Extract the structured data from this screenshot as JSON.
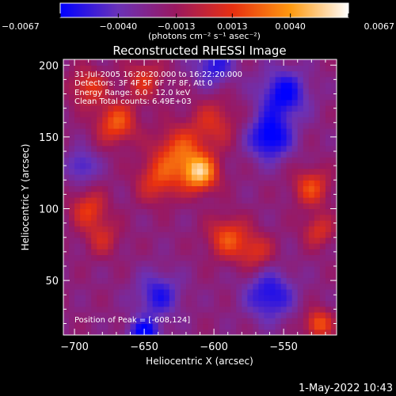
{
  "window": {
    "timestamp": "1-May-2022 10:43"
  },
  "colorbar": {
    "tick_labels": [
      "−0.0067",
      "−0.0040",
      "−0.0013",
      "0.0013",
      "0.0040",
      "0.0067"
    ],
    "tick_values": [
      -0.0067,
      -0.004,
      -0.0013,
      0.0013,
      0.004,
      0.0067
    ],
    "units": "(photons cm⁻² s⁻¹ asec⁻²)",
    "range": [
      -0.0067,
      0.0067
    ]
  },
  "chart_data": {
    "type": "heatmap",
    "title": "Reconstructed RHESSI Image",
    "xlabel": "Heliocentric X (arcsec)",
    "ylabel": "Heliocentric Y (arcsec)",
    "xlim": [
      -708,
      -512
    ],
    "ylim": [
      12,
      204
    ],
    "x_ticks": [
      -700,
      -650,
      -600,
      -550
    ],
    "y_ticks": [
      50,
      100,
      150,
      200
    ],
    "x_tick_labels": [
      "−700",
      "−650",
      "−600",
      "−550"
    ],
    "y_tick_labels": [
      "50",
      "100",
      "150",
      "200"
    ],
    "colormap": [
      "#0000ff",
      "#6a32b8",
      "#9a1860",
      "#e83010",
      "#ff9a10",
      "#ffffff"
    ],
    "peak": {
      "x": -608,
      "y": 124
    },
    "annotations": [
      "31-Jul-2005 16:20:20.000 to 16:22:20.000",
      "Detectors: 3F 4F 5F 6F 7F 8F, Att 0",
      "Energy Range: 6.0 - 12.0 keV",
      "Clean    Total counts: 6.49E+03"
    ],
    "peak_label": "Position of Peak = [-608,124]",
    "sources": [
      {
        "x": -610,
        "y": 125,
        "amp": 0.0067,
        "sigma": 9
      },
      {
        "x": -625,
        "y": 140,
        "amp": 0.0042,
        "sigma": 12
      },
      {
        "x": -640,
        "y": 120,
        "amp": 0.0035,
        "sigma": 11
      },
      {
        "x": -590,
        "y": 80,
        "amp": 0.0042,
        "sigma": 10
      },
      {
        "x": -570,
        "y": 70,
        "amp": 0.003,
        "sigma": 9
      },
      {
        "x": -670,
        "y": 160,
        "amp": 0.0045,
        "sigma": 10
      },
      {
        "x": -690,
        "y": 185,
        "amp": 0.0035,
        "sigma": 9
      },
      {
        "x": -650,
        "y": 190,
        "amp": 0.003,
        "sigma": 10
      },
      {
        "x": -690,
        "y": 100,
        "amp": 0.0035,
        "sigma": 9
      },
      {
        "x": -680,
        "y": 80,
        "amp": 0.0025,
        "sigma": 9
      },
      {
        "x": -530,
        "y": 115,
        "amp": 0.004,
        "sigma": 9
      },
      {
        "x": -525,
        "y": 85,
        "amp": 0.003,
        "sigma": 8
      },
      {
        "x": -525,
        "y": 20,
        "amp": 0.0045,
        "sigma": 7
      },
      {
        "x": -600,
        "y": 160,
        "amp": 0.0028,
        "sigma": 12
      },
      {
        "x": -560,
        "y": 150,
        "amp": -0.005,
        "sigma": 11
      },
      {
        "x": -550,
        "y": 180,
        "amp": -0.0045,
        "sigma": 12
      },
      {
        "x": -560,
        "y": 40,
        "amp": -0.004,
        "sigma": 12
      },
      {
        "x": -640,
        "y": 40,
        "amp": -0.0035,
        "sigma": 11
      },
      {
        "x": -695,
        "y": 130,
        "amp": -0.003,
        "sigma": 8
      },
      {
        "x": -600,
        "y": 200,
        "amp": -0.0035,
        "sigma": 10
      },
      {
        "x": -650,
        "y": 12,
        "amp": -0.005,
        "sigma": 8
      }
    ]
  }
}
